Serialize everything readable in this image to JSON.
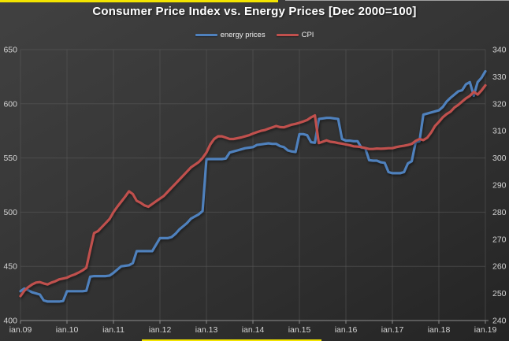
{
  "title": "Consumer Price Index vs. Energy Prices [Dec 2000=100]",
  "accents": {
    "top_bar_color": "#f3e400",
    "bottom_bar_color": "#f3e400",
    "top_edge_line_color": "#d9d9d9"
  },
  "legend": {
    "items": [
      {
        "label": "energy prices",
        "color": "#4F81BD"
      },
      {
        "label": "CPI",
        "color": "#C0504D"
      }
    ]
  },
  "chart_data": {
    "type": "line",
    "title": "Consumer Price Index vs. Energy Prices [Dec 2000=100]",
    "frequency": "monthly",
    "x_start": "Jan 2009",
    "x_end": "Jan 2019",
    "x_tick_labels": [
      "ian.09",
      "ian.10",
      "ian.11",
      "ian.12",
      "ian.13",
      "ian.14",
      "ian.15",
      "ian.16",
      "ian.17",
      "ian.18",
      "ian.19"
    ],
    "left_axis": {
      "min": 400,
      "max": 650,
      "ticks": [
        650,
        600,
        550,
        500,
        450,
        400
      ]
    },
    "right_axis": {
      "min": 240,
      "max": 340,
      "ticks": [
        340,
        330,
        320,
        310,
        300,
        290,
        280,
        270,
        260,
        250,
        240
      ]
    },
    "grid": true,
    "legend_position": "top",
    "axis_text_color": "#d4d4d4",
    "gridline_color": "#5c5c5c",
    "axis_line_color": "#9a9a9a",
    "series": [
      {
        "name": "energy prices",
        "axis": "left",
        "color": "#4F81BD",
        "monthly_values": [
          427,
          429.5,
          428,
          426,
          425,
          424,
          418.5,
          417.5,
          417.5,
          417.5,
          417.5,
          418,
          427,
          427,
          427,
          427,
          427,
          427.5,
          440.5,
          441,
          441,
          441,
          441,
          441.5,
          444,
          447,
          450,
          450.5,
          451,
          453,
          464,
          464,
          464,
          464,
          464,
          470,
          476,
          476,
          476,
          477,
          480,
          484,
          487,
          490,
          494,
          496,
          498,
          501,
          549,
          549,
          549,
          549,
          549,
          549.5,
          555,
          556,
          557,
          558,
          559,
          559.5,
          560,
          562,
          562.5,
          563,
          563.5,
          563,
          563,
          561,
          560,
          557,
          556,
          555.5,
          572,
          572,
          571,
          564.5,
          564,
          586,
          586.5,
          587,
          587,
          586.5,
          586,
          567.5,
          566,
          566,
          565.5,
          565.5,
          559.5,
          559,
          548,
          547.5,
          547.5,
          546,
          545.5,
          537,
          536,
          536,
          536,
          537,
          545,
          547,
          564.5,
          565.5,
          590,
          591,
          592,
          593,
          594,
          597,
          602,
          605.5,
          608.5,
          611.5,
          612.5,
          618,
          620,
          607.5,
          620,
          624,
          630
        ]
      },
      {
        "name": "CPI",
        "axis": "right",
        "color": "#C0504D",
        "monthly_values": [
          249,
          251,
          252.3,
          253.3,
          254,
          254.2,
          253.7,
          253.3,
          254,
          254.5,
          255.2,
          255.5,
          255.8,
          256.5,
          257,
          257.7,
          258.5,
          259.5,
          266,
          272.3,
          273,
          274.5,
          276,
          277.5,
          280,
          282,
          283.8,
          285.7,
          287.7,
          286.7,
          284.2,
          283.5,
          282.5,
          282,
          283,
          284,
          285,
          286,
          287.5,
          289,
          290.5,
          292,
          293.5,
          295,
          296.5,
          297.5,
          298.5,
          300,
          302,
          305,
          307,
          308,
          308,
          307.5,
          307,
          307,
          307.3,
          307.6,
          308,
          308.4,
          309,
          309.5,
          310,
          310.3,
          310.8,
          311.3,
          311.8,
          311.4,
          311.3,
          311.8,
          312.3,
          312.6,
          313,
          313.5,
          314,
          315,
          315.7,
          305.5,
          306,
          306.5,
          306,
          305.8,
          305.5,
          305.3,
          305,
          304.7,
          304.3,
          304.2,
          304,
          303.7,
          303.3,
          303.3,
          303.5,
          303.4,
          303.5,
          303.6,
          303.6,
          304,
          304.3,
          304.5,
          304.8,
          305.2,
          306.3,
          307,
          306.6,
          307.5,
          309.4,
          311.8,
          313.3,
          315,
          316.2,
          317.1,
          318.6,
          319.6,
          320.8,
          322,
          322.9,
          324.4,
          323.4,
          324.9,
          326.8
        ]
      }
    ]
  }
}
